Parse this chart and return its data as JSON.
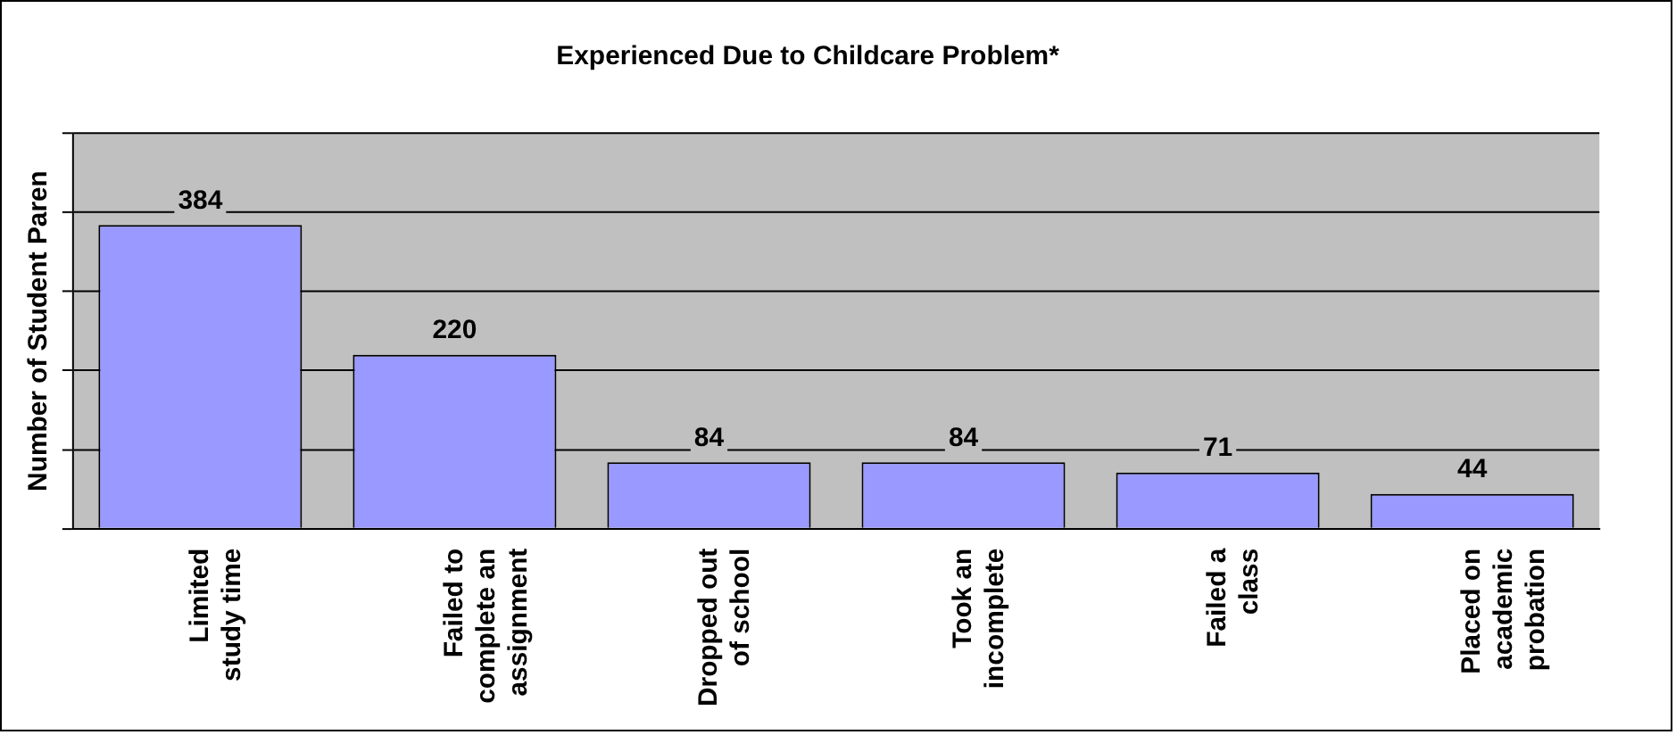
{
  "chart_data": {
    "type": "bar",
    "title": "Experienced Due to Childcare Problem*",
    "ylabel": "Number of Student Paren",
    "categories": [
      "Limited study time",
      "Failed to complete an assignment",
      "Dropped out of school",
      "Took an incomplete",
      "Failed a class",
      "Placed on academic probation"
    ],
    "values": [
      384,
      220,
      84,
      84,
      71,
      44
    ],
    "color": "#9999ff",
    "data_labels": true,
    "ylim": [
      0,
      500
    ],
    "yticks": [
      {
        "value": 0,
        "label": null
      },
      {
        "value": 100,
        "label": null
      },
      {
        "value": 200,
        "label": null
      },
      {
        "value": 300,
        "label": null
      },
      {
        "value": 400,
        "label": null
      },
      {
        "value": 500,
        "label": null
      }
    ],
    "grid": "y",
    "tick_labels": "x",
    "legend": false
  }
}
